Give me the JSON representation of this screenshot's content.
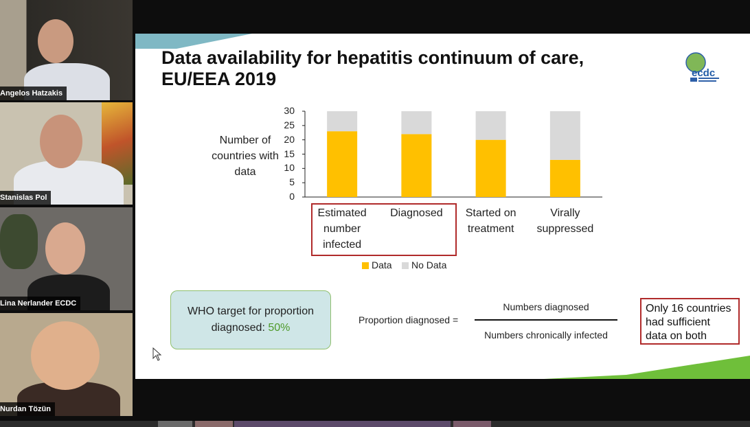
{
  "participants": [
    {
      "name": "Angelos Hatzakis"
    },
    {
      "name": "Stanislas Pol"
    },
    {
      "name": "Lina Nerlander ECDC"
    },
    {
      "name": "Nurdan Tözün"
    }
  ],
  "slide": {
    "title": "Data availability for hepatitis continuum of care,\nEU/EEA 2019",
    "logo_text": "ecdc",
    "y_axis_label": "Number of countries with data",
    "who_box": {
      "text": "WHO target for proportion diagnosed:",
      "percent": "50%"
    },
    "formula": {
      "lhs": "Proportion diagnosed =",
      "numerator": "Numbers diagnosed",
      "denominator": "Numbers chronically infected"
    },
    "note": "Only 16 countries had sufficient data on both"
  },
  "chart_data": {
    "type": "bar",
    "stacked": true,
    "categories": [
      "Estimated number infected",
      "Diagnosed",
      "Started on treatment",
      "Virally suppressed"
    ],
    "series": [
      {
        "name": "Data",
        "color": "#ffc000",
        "values": [
          23,
          22,
          20,
          13
        ]
      },
      {
        "name": "No Data",
        "color": "#d9d9d9",
        "values": [
          7,
          8,
          10,
          17
        ]
      }
    ],
    "ylim": [
      0,
      30
    ],
    "yticks": [
      "30",
      "25",
      "20",
      "15",
      "10",
      "5",
      "0"
    ],
    "ylabel": "Number of countries with data",
    "legend": "bottom"
  }
}
